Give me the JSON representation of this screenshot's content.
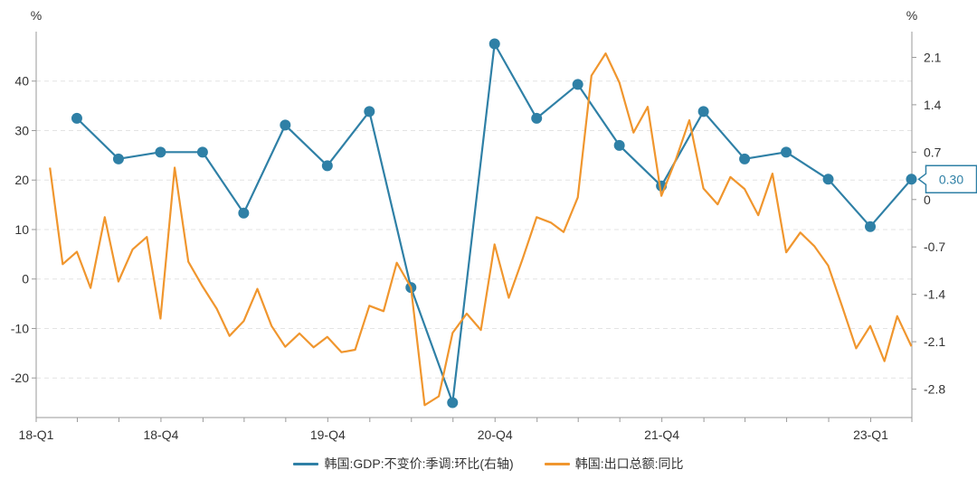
{
  "chart_data": {
    "type": "line",
    "left_unit": "%",
    "right_unit": "%",
    "x_tick_labels": [
      "18-Q1",
      "18-Q4",
      "19-Q4",
      "20-Q4",
      "21-Q4",
      "23-Q1"
    ],
    "y_left": {
      "ylim": [
        -28,
        50
      ],
      "ticks": [
        40,
        30,
        20,
        10,
        0,
        -10,
        -20
      ]
    },
    "y_right": {
      "ylim": [
        -3.22,
        2.48
      ],
      "ticks": [
        "2.1",
        "1.4",
        "0.7",
        "0",
        "-0.7",
        "-1.4",
        "-2.1",
        "-2.8"
      ]
    },
    "grid": true,
    "legend_position": "bottom",
    "series": [
      {
        "name": "韩国:GDP:不变价:季调:环比(右轴)",
        "axis": "right",
        "color": "#2f80a6",
        "markers": true,
        "x": [
          "2018-03-31",
          "2018-06-30",
          "2018-09-30",
          "2018-12-31",
          "2019-03-31",
          "2019-06-30",
          "2019-09-30",
          "2019-12-31",
          "2020-03-31",
          "2020-06-30",
          "2020-09-30",
          "2020-12-31",
          "2021-03-31",
          "2021-06-30",
          "2021-09-30",
          "2021-12-31",
          "2022-03-31",
          "2022-06-30",
          "2022-09-30",
          "2022-12-31",
          "2023-03-31"
        ],
        "values": [
          1.2,
          0.6,
          0.7,
          0.7,
          -0.2,
          1.1,
          0.5,
          1.3,
          -1.3,
          -3.0,
          2.3,
          1.2,
          1.7,
          0.8,
          0.2,
          1.3,
          0.6,
          0.7,
          0.3,
          -0.4,
          0.3
        ]
      },
      {
        "name": "韩国:出口总额:同比",
        "axis": "left",
        "color": "#f0962e",
        "markers": false,
        "x": [
          "2018-01-31",
          "2018-02-28",
          "2018-03-31",
          "2018-04-30",
          "2018-05-31",
          "2018-06-30",
          "2018-07-31",
          "2018-08-31",
          "2018-09-30",
          "2018-10-31",
          "2018-11-30",
          "2018-12-31",
          "2019-01-31",
          "2019-02-28",
          "2019-03-31",
          "2019-04-30",
          "2019-05-31",
          "2019-06-30",
          "2019-07-31",
          "2019-08-31",
          "2019-09-30",
          "2019-10-31",
          "2019-11-30",
          "2019-12-31",
          "2020-01-31",
          "2020-02-29",
          "2020-03-31",
          "2020-04-30",
          "2020-05-31",
          "2020-06-30",
          "2020-07-31",
          "2020-08-31",
          "2020-09-30",
          "2020-10-31",
          "2020-11-30",
          "2020-12-31",
          "2021-01-31",
          "2021-02-28",
          "2021-03-31",
          "2021-04-30",
          "2021-05-31",
          "2021-06-30",
          "2021-07-31",
          "2021-08-31",
          "2021-09-30",
          "2021-10-31",
          "2021-11-30",
          "2021-12-31",
          "2022-01-31",
          "2022-02-28",
          "2022-03-31",
          "2022-04-30",
          "2022-05-31",
          "2022-06-30",
          "2022-07-31",
          "2022-08-31",
          "2022-09-30",
          "2022-10-31",
          "2022-11-30",
          "2022-12-31",
          "2023-01-31",
          "2023-02-28",
          "2023-03-31"
        ],
        "values": [
          22.5,
          3.0,
          5.5,
          -1.8,
          12.5,
          -0.5,
          6.0,
          8.5,
          -8.0,
          22.5,
          3.5,
          -1.5,
          -6.0,
          -11.5,
          -8.5,
          -2.0,
          -9.5,
          -13.7,
          -11.0,
          -13.8,
          -11.7,
          -14.8,
          -14.3,
          -5.4,
          -6.5,
          3.3,
          -1.7,
          -25.5,
          -23.7,
          -10.9,
          -7.0,
          -10.3,
          7.0,
          -3.8,
          4.0,
          12.5,
          11.4,
          9.5,
          16.5,
          41.1,
          45.6,
          39.7,
          29.6,
          34.8,
          16.8,
          24.0,
          32.1,
          18.3,
          15.1,
          20.6,
          18.2,
          12.9,
          21.3,
          5.4,
          9.4,
          6.6,
          2.7,
          -5.7,
          -14.0,
          -9.5,
          -16.6,
          -7.5,
          -13.6
        ]
      }
    ],
    "annotations": [
      {
        "series_index": 0,
        "point_index": 20,
        "text": "0.30"
      }
    ]
  },
  "legend": {
    "item_1": "韩国:GDP:不变价:季调:环比(右轴)",
    "item_2": "韩国:出口总额:同比"
  }
}
